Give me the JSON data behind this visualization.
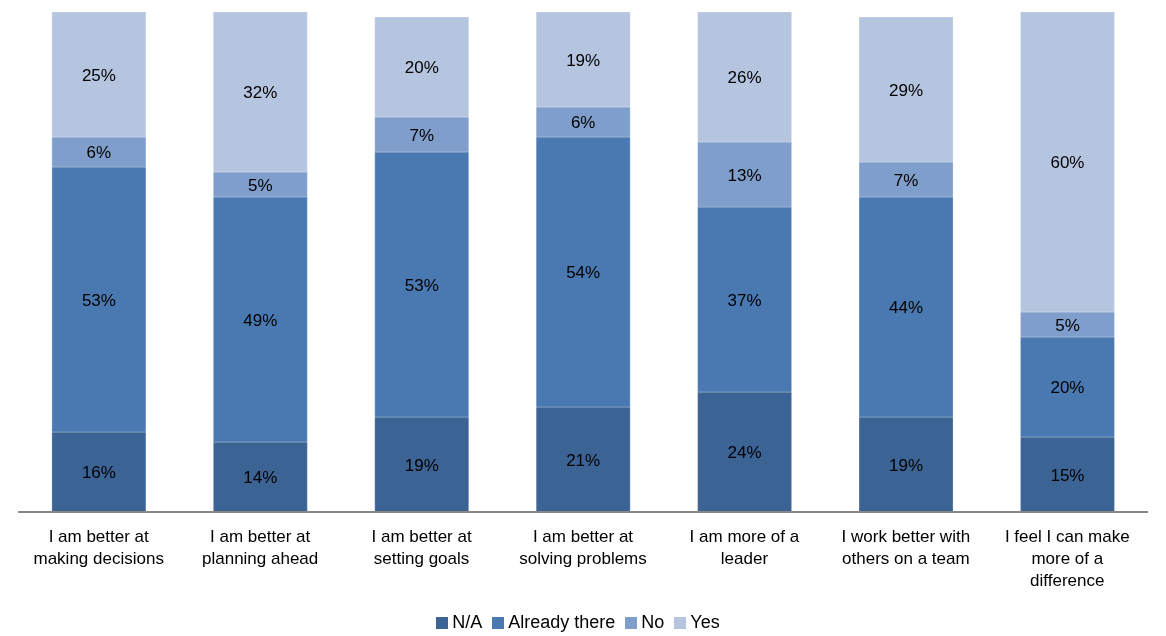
{
  "chart_data": {
    "type": "bar",
    "stacked": true,
    "categories": [
      "I am better at making decisions",
      "I am better at planning ahead",
      "I am better at setting goals",
      "I am better at solving problems",
      "I am more of a leader",
      "I work better with others on a team",
      "I feel I can make more of a difference"
    ],
    "series": [
      {
        "name": "N/A",
        "color": "#3b6394",
        "values": [
          16,
          14,
          19,
          21,
          24,
          19,
          15
        ],
        "value_labels": [
          "16%",
          "14%",
          "19%",
          "21%",
          "24%",
          "19%",
          "15%"
        ]
      },
      {
        "name": "Already there",
        "color": "#4a79b1",
        "values": [
          53,
          49,
          53,
          54,
          37,
          44,
          20
        ],
        "value_labels": [
          "53%",
          "49%",
          "53%",
          "54%",
          "37%",
          "44%",
          "20%"
        ]
      },
      {
        "name": "No",
        "color": "#7f9ecb",
        "values": [
          6,
          5,
          7,
          6,
          13,
          7,
          5
        ],
        "value_labels": [
          "6%",
          "5%",
          "7%",
          "6%",
          "13%",
          "7%",
          "5%"
        ]
      },
      {
        "name": "Yes",
        "color": "#b5c4df",
        "values": [
          25,
          32,
          20,
          19,
          26,
          29,
          60
        ],
        "value_labels": [
          "25%",
          "32%",
          "20%",
          "19%",
          "26%",
          "29%",
          "60%"
        ]
      }
    ],
    "legend": "bottom",
    "grid": false
  }
}
